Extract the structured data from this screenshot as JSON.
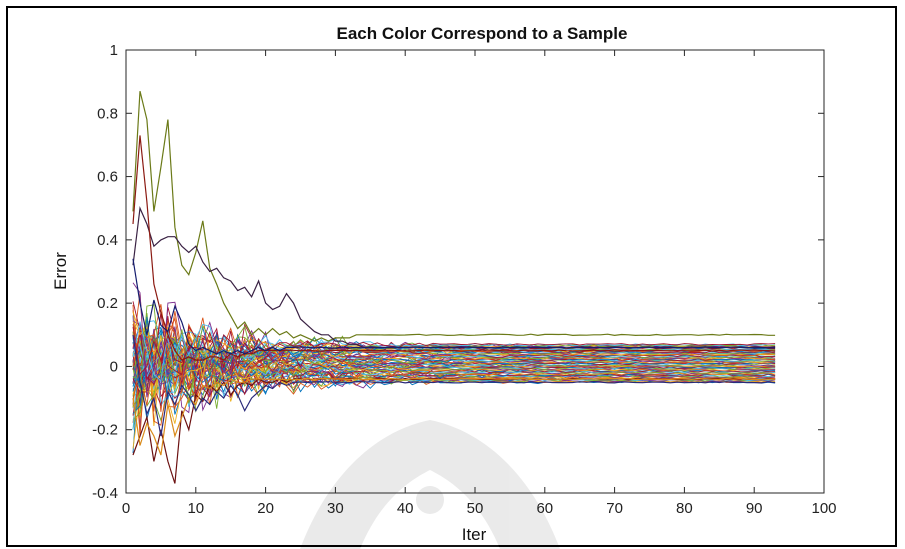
{
  "chart_data": {
    "type": "line",
    "title": "Each Color Correspond to a Sample",
    "xlabel": "Iter",
    "ylabel": "Error",
    "xlim": [
      0,
      100
    ],
    "ylim": [
      -0.4,
      1
    ],
    "xticks": [
      0,
      10,
      20,
      30,
      40,
      50,
      60,
      70,
      80,
      90,
      100
    ],
    "yticks": [
      -0.4,
      -0.2,
      0,
      0.2,
      0.4,
      0.6,
      0.8,
      1
    ],
    "grid": false,
    "legend": "none",
    "n_iter": 93,
    "highlight_series": [
      {
        "color": "#6b7a18",
        "values": [
          0.49,
          0.87,
          0.78,
          0.49,
          0.63,
          0.78,
          0.44,
          0.32,
          0.29,
          0.36,
          0.46,
          0.31,
          0.26,
          0.2,
          0.16,
          0.12,
          0.14,
          0.1,
          0.12,
          0.1,
          0.12,
          0.1,
          0.11,
          0.09,
          0.1,
          0.09,
          0.08,
          0.09,
          0.08,
          0.09,
          0.09,
          0.09,
          0.1,
          0.1
        ]
      },
      {
        "color": "#3a2244",
        "values": [
          0.32,
          0.5,
          0.45,
          0.38,
          0.4,
          0.41,
          0.41,
          0.38,
          0.36,
          0.38,
          0.33,
          0.3,
          0.31,
          0.28,
          0.27,
          0.24,
          0.25,
          0.22,
          0.27,
          0.2,
          0.18,
          0.19,
          0.23,
          0.2,
          0.15,
          0.13,
          0.11,
          0.1,
          0.1,
          0.08,
          0.08,
          0.07,
          0.07,
          0.06
        ]
      },
      {
        "color": "#8b1a12",
        "values": [
          0.45,
          0.73,
          0.52,
          0.26,
          0.17,
          0.1,
          0.05,
          0.02,
          0.03,
          0.02,
          0.02,
          0.03,
          0.03,
          0.02,
          0.04,
          0.03,
          0.04,
          0.04,
          0.05,
          0.05
        ]
      },
      {
        "color": "#141c6e",
        "values": [
          0.34,
          0.2,
          0.1,
          0.21,
          0.13,
          0.11,
          0.19,
          0.14,
          0.07,
          0.05,
          0.06,
          0.05,
          0.04,
          0.05,
          0.04,
          0.05,
          0.04,
          0.05,
          0.06,
          0.05,
          0.06,
          0.05,
          0.06,
          0.06
        ]
      },
      {
        "color": "#6b1010",
        "values": [
          -0.28,
          -0.22,
          -0.16,
          -0.3,
          -0.2,
          -0.3,
          -0.37,
          -0.14,
          -0.2,
          -0.09,
          -0.11,
          -0.06,
          -0.08,
          -0.05,
          -0.09,
          -0.06,
          -0.05,
          -0.06,
          -0.04,
          -0.05,
          -0.05,
          -0.04,
          -0.05,
          -0.04
        ]
      },
      {
        "color": "#d98a1a",
        "values": [
          -0.1,
          -0.25,
          -0.18,
          -0.22,
          -0.28,
          -0.12,
          -0.22,
          -0.16,
          -0.1,
          -0.12,
          -0.06,
          -0.07,
          -0.05,
          -0.06,
          -0.04,
          -0.05,
          -0.05,
          -0.04
        ]
      },
      {
        "color": "#2a2a7a",
        "values": [
          0.1,
          -0.05,
          -0.15,
          -0.1,
          -0.22,
          -0.08,
          -0.12,
          -0.06,
          -0.09,
          -0.14,
          -0.1,
          -0.12,
          -0.08,
          -0.1,
          -0.06,
          -0.09,
          -0.14,
          -0.1,
          -0.08,
          -0.06,
          -0.07,
          -0.05,
          -0.06,
          -0.05
        ]
      }
    ],
    "bundle": {
      "final_values_min": -0.05,
      "final_values_max": 0.07,
      "colors": [
        "#0072bd",
        "#d95319",
        "#edb120",
        "#7e2f8e",
        "#77ac30",
        "#4dbeee",
        "#a2142f"
      ]
    }
  }
}
